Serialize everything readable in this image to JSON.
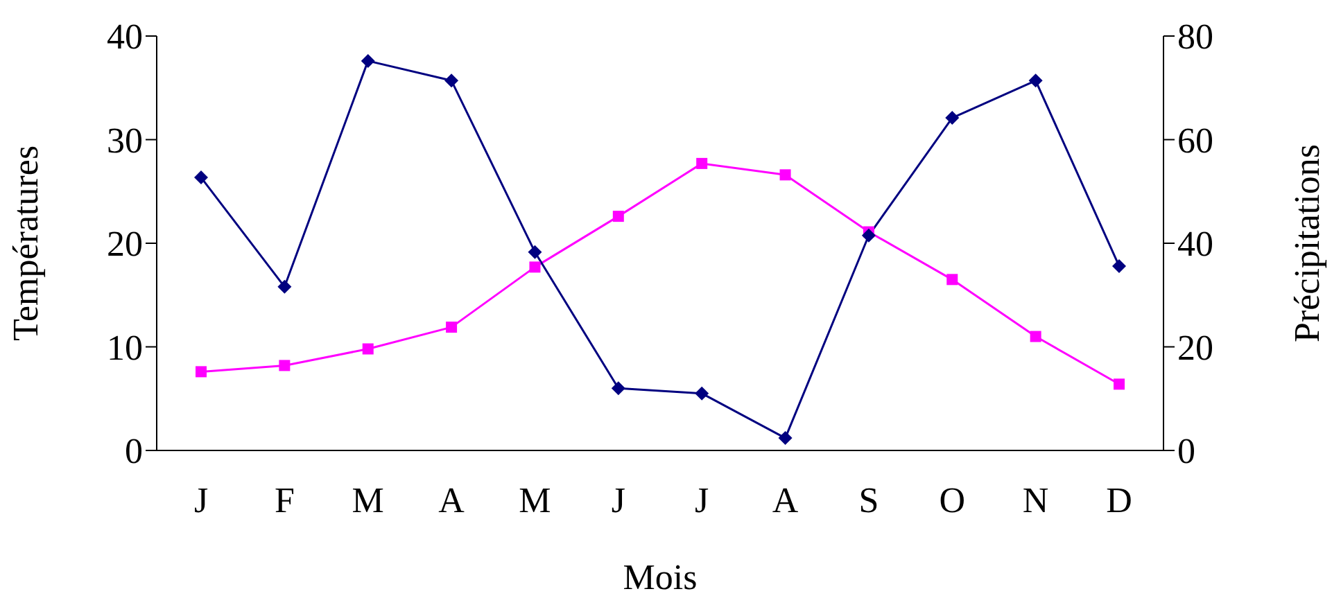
{
  "chart_data": {
    "type": "line",
    "xlabel": "Mois",
    "ylabel": "Températures",
    "y2label": "Précipitations",
    "categories": [
      "J",
      "F",
      "M",
      "A",
      "M",
      "J",
      "J",
      "A",
      "S",
      "O",
      "N",
      "D"
    ],
    "ylim": [
      0,
      40
    ],
    "yticks": [
      0,
      10,
      20,
      30,
      40
    ],
    "y2lim": [
      0,
      80
    ],
    "y2ticks": [
      0,
      20,
      40,
      60,
      80
    ],
    "grid": false,
    "legend": false,
    "series": [
      {
        "color": "#000080",
        "axis": "y2",
        "marker": "diamond",
        "values": [
          52.7,
          31.6,
          75.2,
          71.4,
          38.3,
          12.0,
          11.0,
          2.4,
          41.5,
          64.2,
          71.4,
          35.6
        ]
      },
      {
        "color": "#ff00ff",
        "axis": "y",
        "marker": "square",
        "values": [
          7.6,
          8.2,
          9.8,
          11.9,
          17.7,
          22.6,
          27.7,
          26.6,
          21.1,
          16.5,
          11.0,
          6.4
        ]
      }
    ]
  }
}
